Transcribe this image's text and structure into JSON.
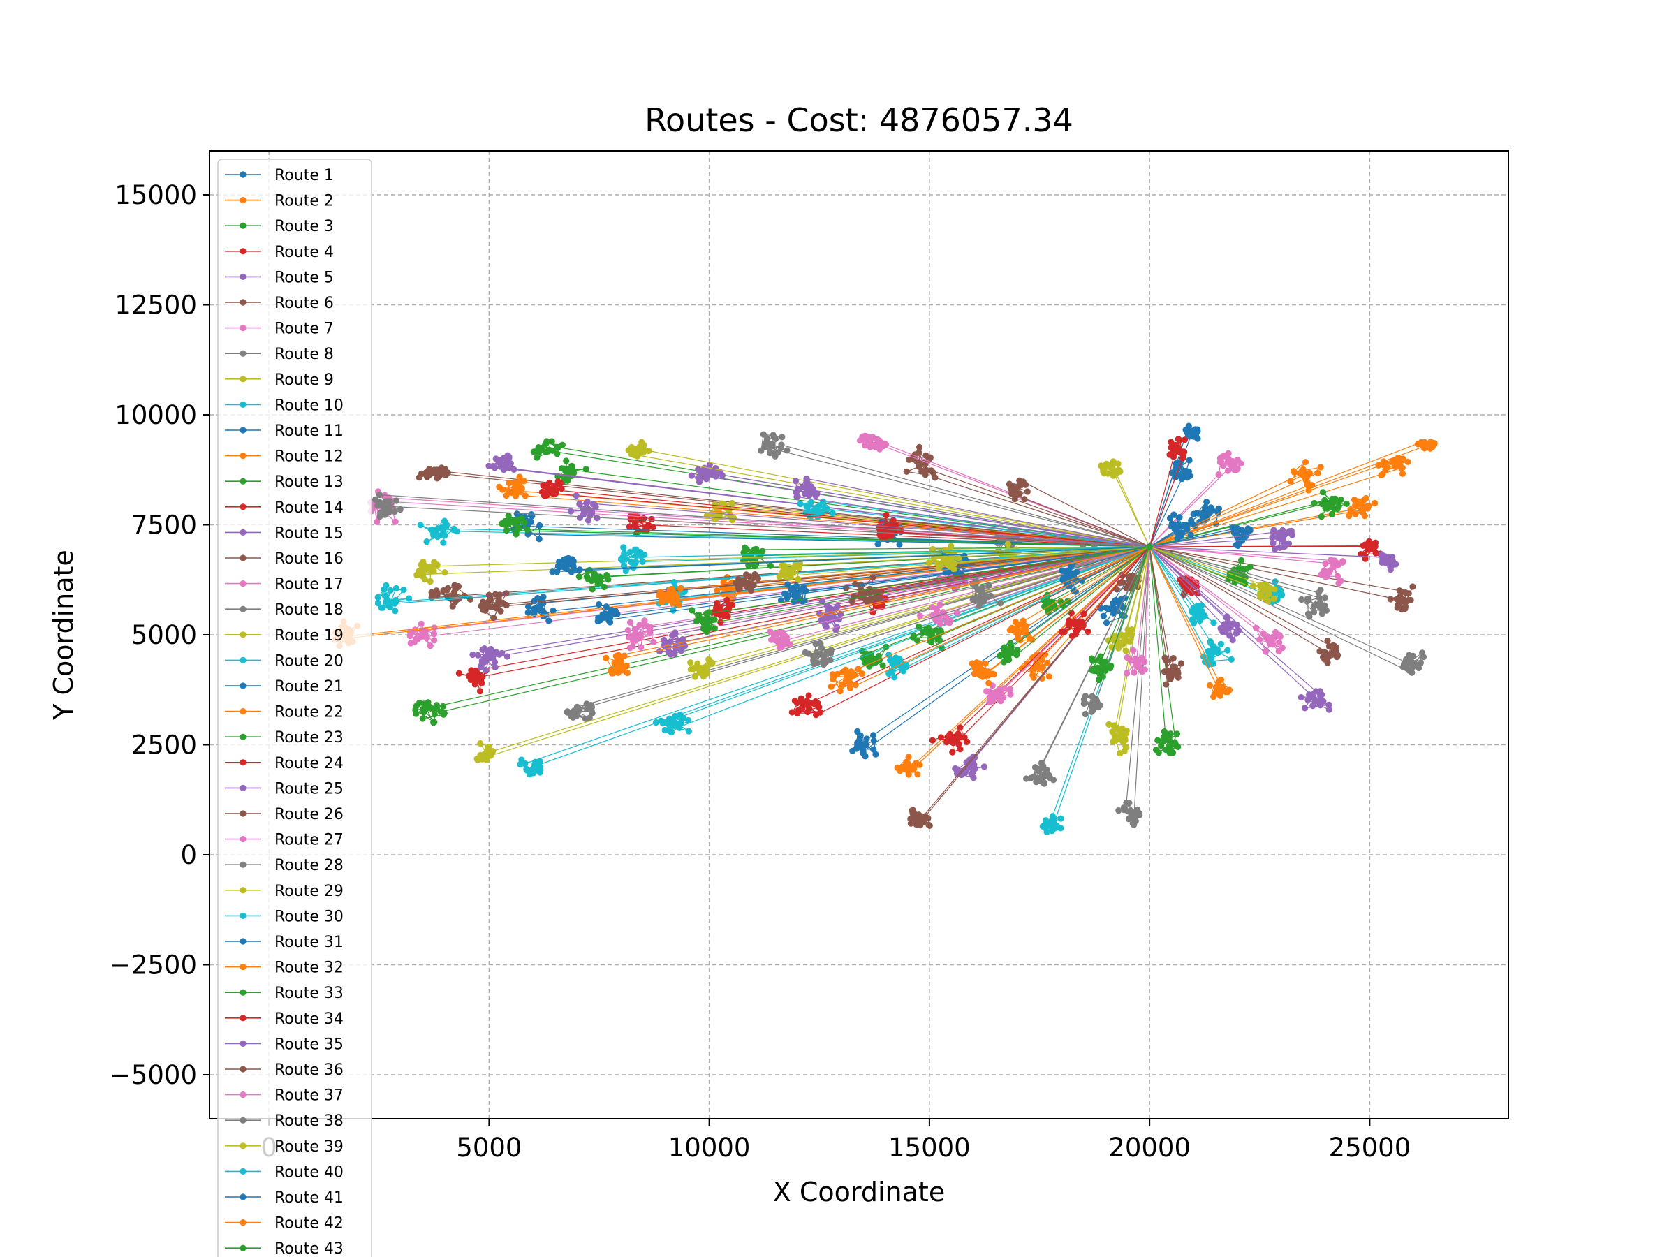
{
  "chart_data": {
    "type": "line",
    "title": "Routes - Cost: 4876057.34",
    "xlabel": "X Coordinate",
    "ylabel": "Y Coordinate",
    "xlim": [
      -1350,
      28150
    ],
    "ylim": [
      -6000,
      16000
    ],
    "xticks": [
      0,
      5000,
      10000,
      15000,
      20000,
      25000
    ],
    "xtick_labels": [
      "0",
      "5000",
      "10000",
      "15000",
      "20000",
      "25000"
    ],
    "yticks": [
      -5000,
      -2500,
      0,
      2500,
      5000,
      7500,
      10000,
      12500,
      15000
    ],
    "ytick_labels": [
      "−5000",
      "−2500",
      "0",
      "2500",
      "5000",
      "7500",
      "10000",
      "12500",
      "15000"
    ],
    "grid": true,
    "legend_position": "upper-left",
    "depot": [
      20000,
      7000
    ],
    "series_colors": [
      "#1f77b4",
      "#ff7f0e",
      "#2ca02c",
      "#d62728",
      "#9467bd",
      "#8c564b",
      "#e377c2",
      "#7f7f7f",
      "#bcbd22",
      "#17becf"
    ],
    "series": [
      {
        "name": "Route 1",
        "clusters": [
          [
            20700,
            8700,
            350,
            350
          ],
          [
            21000,
            9600,
            250,
            250
          ],
          [
            21300,
            7800,
            400,
            400
          ]
        ]
      },
      {
        "name": "Route 2",
        "clusters": [
          [
            25500,
            8900,
            600,
            350
          ],
          [
            26300,
            9300,
            300,
            150
          ],
          [
            24800,
            7900,
            500,
            400
          ]
        ]
      },
      {
        "name": "Route 3",
        "clusters": [
          [
            6300,
            9200,
            500,
            300
          ],
          [
            6800,
            8700,
            500,
            300
          ],
          [
            24100,
            8000,
            500,
            400
          ]
        ]
      },
      {
        "name": "Route 4",
        "clusters": [
          [
            8500,
            7500,
            500,
            350
          ],
          [
            20600,
            9200,
            350,
            350
          ],
          [
            25000,
            7000,
            400,
            350
          ]
        ]
      },
      {
        "name": "Route 5",
        "clusters": [
          [
            5300,
            8900,
            400,
            300
          ],
          [
            9900,
            8700,
            500,
            300
          ],
          [
            25400,
            6700,
            300,
            300
          ]
        ]
      },
      {
        "name": "Route 6",
        "clusters": [
          [
            3800,
            8700,
            500,
            250
          ],
          [
            14800,
            8900,
            500,
            450
          ],
          [
            25700,
            5800,
            300,
            400
          ]
        ]
      },
      {
        "name": "Route 7",
        "clusters": [
          [
            2700,
            7900,
            500,
            450
          ],
          [
            13700,
            9400,
            400,
            300
          ],
          [
            21800,
            8900,
            400,
            400
          ]
        ]
      },
      {
        "name": "Route 8",
        "clusters": [
          [
            11400,
            9300,
            500,
            400
          ],
          [
            16800,
            7200,
            450,
            400
          ],
          [
            26000,
            4400,
            350,
            300
          ]
        ]
      },
      {
        "name": "Route 9",
        "clusters": [
          [
            8400,
            9200,
            350,
            250
          ],
          [
            10300,
            7800,
            500,
            400
          ],
          [
            19100,
            8800,
            450,
            350
          ]
        ]
      },
      {
        "name": "Route 10",
        "clusters": [
          [
            3900,
            7400,
            500,
            400
          ],
          [
            12400,
            7800,
            500,
            350
          ],
          [
            22800,
            5900,
            400,
            350
          ]
        ]
      },
      {
        "name": "Route 11",
        "clusters": [
          [
            5800,
            7500,
            500,
            450
          ],
          [
            14100,
            7300,
            500,
            400
          ],
          [
            22100,
            7300,
            400,
            350
          ]
        ]
      },
      {
        "name": "Route 12",
        "clusters": [
          [
            5600,
            8300,
            450,
            350
          ],
          [
            10500,
            6000,
            550,
            400
          ],
          [
            23500,
            8600,
            500,
            400
          ]
        ]
      },
      {
        "name": "Route 13",
        "clusters": [
          [
            5500,
            7600,
            450,
            350
          ],
          [
            11000,
            6800,
            500,
            400
          ],
          [
            22000,
            6400,
            400,
            400
          ]
        ]
      },
      {
        "name": "Route 14",
        "clusters": [
          [
            6400,
            8300,
            400,
            300
          ],
          [
            14000,
            7400,
            450,
            400
          ],
          [
            20900,
            6100,
            400,
            350
          ]
        ]
      },
      {
        "name": "Route 15",
        "clusters": [
          [
            7200,
            7900,
            400,
            350
          ],
          [
            12200,
            8300,
            500,
            350
          ],
          [
            23000,
            7200,
            400,
            400
          ]
        ]
      },
      {
        "name": "Route 16",
        "clusters": [
          [
            4100,
            5900,
            600,
            400
          ],
          [
            17000,
            8300,
            450,
            350
          ],
          [
            24100,
            4600,
            400,
            400
          ]
        ]
      },
      {
        "name": "Route 17",
        "clusters": [
          [
            3500,
            5000,
            500,
            400
          ],
          [
            15600,
            6300,
            500,
            400
          ],
          [
            24200,
            6500,
            400,
            400
          ]
        ]
      },
      {
        "name": "Route 18",
        "clusters": [
          [
            2600,
            7900,
            500,
            350
          ],
          [
            18500,
            6800,
            450,
            400
          ],
          [
            23800,
            5700,
            450,
            400
          ]
        ]
      },
      {
        "name": "Route 19",
        "clusters": [
          [
            3600,
            6500,
            500,
            400
          ],
          [
            16800,
            6800,
            450,
            400
          ],
          [
            22600,
            6000,
            400,
            400
          ]
        ]
      },
      {
        "name": "Route 20",
        "clusters": [
          [
            2800,
            5800,
            600,
            500
          ],
          [
            9200,
            5900,
            450,
            400
          ],
          [
            21500,
            4600,
            500,
            400
          ]
        ]
      },
      {
        "name": "Route 21",
        "clusters": [
          [
            6200,
            5600,
            500,
            400
          ],
          [
            13500,
            2500,
            500,
            350
          ],
          [
            19200,
            5600,
            450,
            400
          ]
        ]
      },
      {
        "name": "Route 22",
        "clusters": [
          [
            1800,
            5000,
            500,
            450
          ],
          [
            14500,
            2000,
            500,
            350
          ],
          [
            17500,
            4300,
            450,
            400
          ]
        ]
      },
      {
        "name": "Route 23",
        "clusters": [
          [
            3600,
            3300,
            500,
            350
          ],
          [
            13700,
            4500,
            450,
            400
          ],
          [
            20400,
            2500,
            400,
            400
          ]
        ]
      },
      {
        "name": "Route 24",
        "clusters": [
          [
            4700,
            4000,
            500,
            300
          ],
          [
            12200,
            3400,
            500,
            400
          ],
          [
            15500,
            2600,
            450,
            350
          ]
        ]
      },
      {
        "name": "Route 25",
        "clusters": [
          [
            5000,
            4500,
            500,
            400
          ],
          [
            15900,
            2000,
            450,
            400
          ],
          [
            23800,
            3500,
            400,
            400
          ]
        ]
      },
      {
        "name": "Route 26",
        "clusters": [
          [
            5100,
            5700,
            500,
            400
          ],
          [
            14800,
            800,
            400,
            300
          ],
          [
            19600,
            6200,
            400,
            400
          ]
        ]
      },
      {
        "name": "Route 27",
        "clusters": [
          [
            8400,
            5000,
            500,
            400
          ],
          [
            16500,
            3600,
            450,
            400
          ],
          [
            22800,
            4900,
            450,
            400
          ]
        ]
      },
      {
        "name": "Route 28",
        "clusters": [
          [
            7100,
            3300,
            500,
            350
          ],
          [
            17500,
            1800,
            450,
            400
          ],
          [
            19600,
            1000,
            400,
            500
          ]
        ]
      },
      {
        "name": "Route 29",
        "clusters": [
          [
            4900,
            2300,
            500,
            300
          ],
          [
            9800,
            4200,
            500,
            400
          ],
          [
            19300,
            2700,
            400,
            500
          ]
        ]
      },
      {
        "name": "Route 30",
        "clusters": [
          [
            6000,
            2000,
            400,
            300
          ],
          [
            9200,
            3000,
            500,
            350
          ],
          [
            17800,
            700,
            300,
            350
          ]
        ]
      },
      {
        "name": "Route 31",
        "clusters": [
          [
            7700,
            5400,
            500,
            400
          ],
          [
            15600,
            6600,
            500,
            400
          ],
          [
            20700,
            7500,
            400,
            400
          ]
        ]
      },
      {
        "name": "Route 32",
        "clusters": [
          [
            9100,
            5900,
            450,
            400
          ],
          [
            16200,
            4200,
            450,
            400
          ],
          [
            21600,
            3800,
            400,
            350
          ]
        ]
      },
      {
        "name": "Route 33",
        "clusters": [
          [
            7400,
            6300,
            450,
            350
          ],
          [
            15000,
            5000,
            500,
            400
          ],
          [
            17800,
            5700,
            450,
            400
          ]
        ]
      },
      {
        "name": "Route 34",
        "clusters": [
          [
            10300,
            5500,
            450,
            350
          ],
          [
            13800,
            5800,
            500,
            400
          ],
          [
            18300,
            5200,
            400,
            400
          ]
        ]
      },
      {
        "name": "Route 35",
        "clusters": [
          [
            9300,
            4800,
            500,
            400
          ],
          [
            12800,
            5400,
            450,
            400
          ],
          [
            21900,
            5200,
            400,
            400
          ]
        ]
      },
      {
        "name": "Route 36",
        "clusters": [
          [
            10800,
            6200,
            500,
            400
          ],
          [
            13500,
            6000,
            500,
            400
          ],
          [
            20500,
            4200,
            400,
            400
          ]
        ]
      },
      {
        "name": "Route 37",
        "clusters": [
          [
            11600,
            4900,
            450,
            400
          ],
          [
            15200,
            5400,
            450,
            400
          ],
          [
            19700,
            4300,
            400,
            400
          ]
        ]
      },
      {
        "name": "Route 38",
        "clusters": [
          [
            12500,
            4500,
            450,
            400
          ],
          [
            16200,
            5900,
            450,
            400
          ],
          [
            18700,
            3400,
            400,
            400
          ]
        ]
      },
      {
        "name": "Route 39",
        "clusters": [
          [
            11800,
            6500,
            450,
            400
          ],
          [
            15400,
            6700,
            450,
            400
          ],
          [
            19400,
            4900,
            400,
            450
          ]
        ]
      },
      {
        "name": "Route 40",
        "clusters": [
          [
            8300,
            6700,
            450,
            400
          ],
          [
            14300,
            4300,
            450,
            400
          ],
          [
            21100,
            5500,
            400,
            400
          ]
        ]
      },
      {
        "name": "Route 41",
        "clusters": [
          [
            6700,
            6600,
            450,
            400
          ],
          [
            12000,
            5900,
            450,
            400
          ],
          [
            18200,
            6300,
            400,
            400
          ]
        ]
      },
      {
        "name": "Route 42",
        "clusters": [
          [
            7900,
            4300,
            450,
            400
          ],
          [
            13100,
            4000,
            450,
            400
          ],
          [
            17100,
            5100,
            400,
            400
          ]
        ]
      },
      {
        "name": "Route 43",
        "clusters": [
          [
            9900,
            5300,
            450,
            400
          ],
          [
            16800,
            4600,
            450,
            400
          ],
          [
            18900,
            4300,
            400,
            400
          ]
        ]
      }
    ]
  }
}
